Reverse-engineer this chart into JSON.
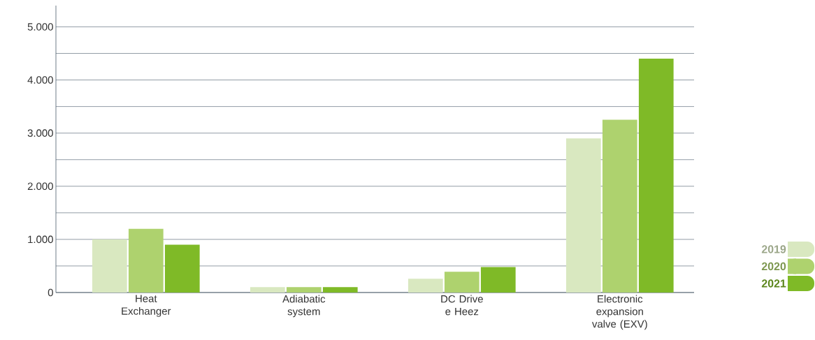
{
  "chart_data": {
    "type": "bar",
    "categories": [
      "Heat Exchanger",
      "Adiabatic system",
      "DC Drive e Heez",
      "Electronic expansion valve (EXV)"
    ],
    "series": [
      {
        "name": "2019",
        "color": "#d9e8c0",
        "values": [
          1000,
          100,
          260,
          2900
        ]
      },
      {
        "name": "2020",
        "color": "#aed26e",
        "values": [
          1200,
          100,
          390,
          3250
        ]
      },
      {
        "name": "2021",
        "color": "#7fba27",
        "values": [
          900,
          100,
          480,
          4400
        ]
      }
    ],
    "ylim": [
      0,
      5400
    ],
    "yticks": [
      0,
      {
        "value": 500,
        "label": null
      },
      {
        "value": 1000,
        "label": "1.000"
      },
      {
        "value": 1500,
        "label": null
      },
      {
        "value": 2000,
        "label": "2.000"
      },
      {
        "value": 2500,
        "label": null
      },
      {
        "value": 3000,
        "label": "3.000"
      },
      {
        "value": 3500,
        "label": null
      },
      {
        "value": 4000,
        "label": "4.000"
      },
      {
        "value": 4500,
        "label": null
      },
      {
        "value": 5000,
        "label": "5.000"
      }
    ],
    "grid": "y",
    "legend": "right"
  }
}
